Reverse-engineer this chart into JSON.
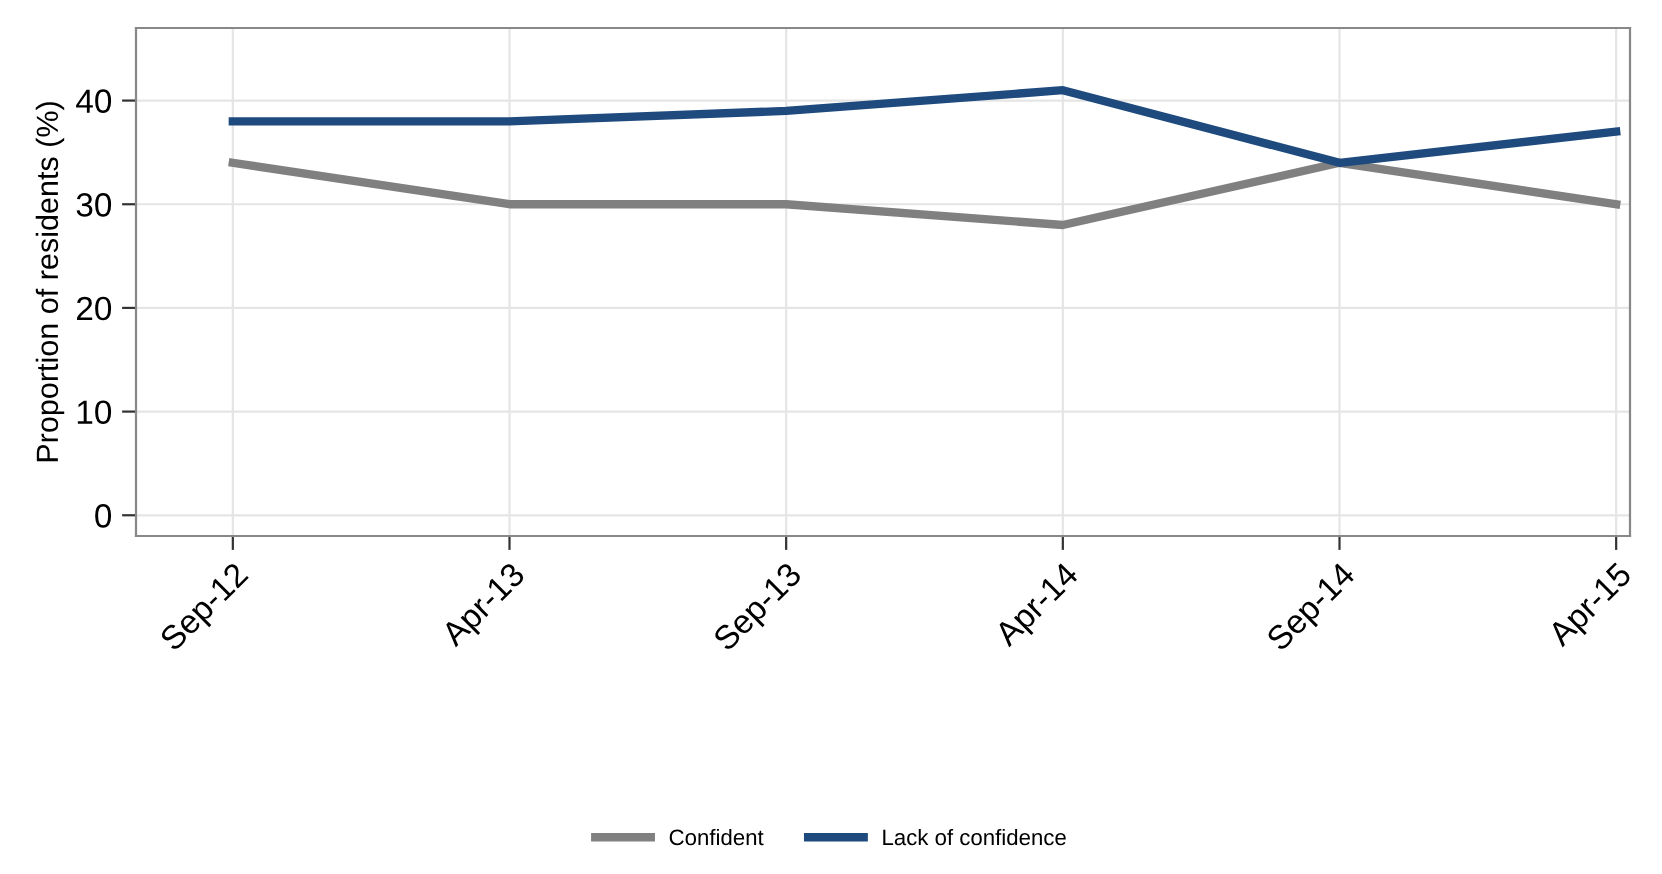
{
  "chart_data": {
    "type": "line",
    "ylabel": "Proportion of residents (%)",
    "categories": [
      "Sep-12",
      "Apr-13",
      "Sep-13",
      "Apr-14",
      "Sep-14",
      "Apr-15"
    ],
    "series": [
      {
        "name": "Confident",
        "color": "#808080",
        "values": [
          34,
          30,
          30,
          28,
          34,
          30
        ]
      },
      {
        "name": "Lack of confidence",
        "color": "#1f4a7e",
        "values": [
          38,
          38,
          39,
          41,
          34,
          37
        ]
      }
    ],
    "ylim": [
      -2,
      47
    ],
    "yticks": [
      0,
      10,
      20,
      30,
      40
    ],
    "grid": true,
    "legend": "bottom",
    "line_style": "solid",
    "marker": "none"
  }
}
